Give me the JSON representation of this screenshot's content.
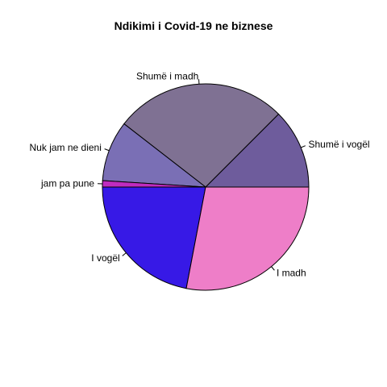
{
  "chart_data": {
    "type": "pie",
    "title": "Ndikimi i Covid-19 ne biznese",
    "legend": "none",
    "slices": [
      {
        "label": "Shumë i vogël",
        "value": 12.5,
        "color": "#6e5c9c"
      },
      {
        "label": "Shumë i madh",
        "value": 27.0,
        "color": "#7f7193"
      },
      {
        "label": "Nuk jam ne dieni",
        "value": 9.5,
        "color": "#7a6fb5"
      },
      {
        "label": "jam pa pune",
        "value": 1.0,
        "color": "#c02cbf"
      },
      {
        "label": "I vogël",
        "value": 22.0,
        "color": "#3719e6"
      },
      {
        "label": "I madh",
        "value": 28.0,
        "color": "#ee7ec8"
      }
    ]
  }
}
